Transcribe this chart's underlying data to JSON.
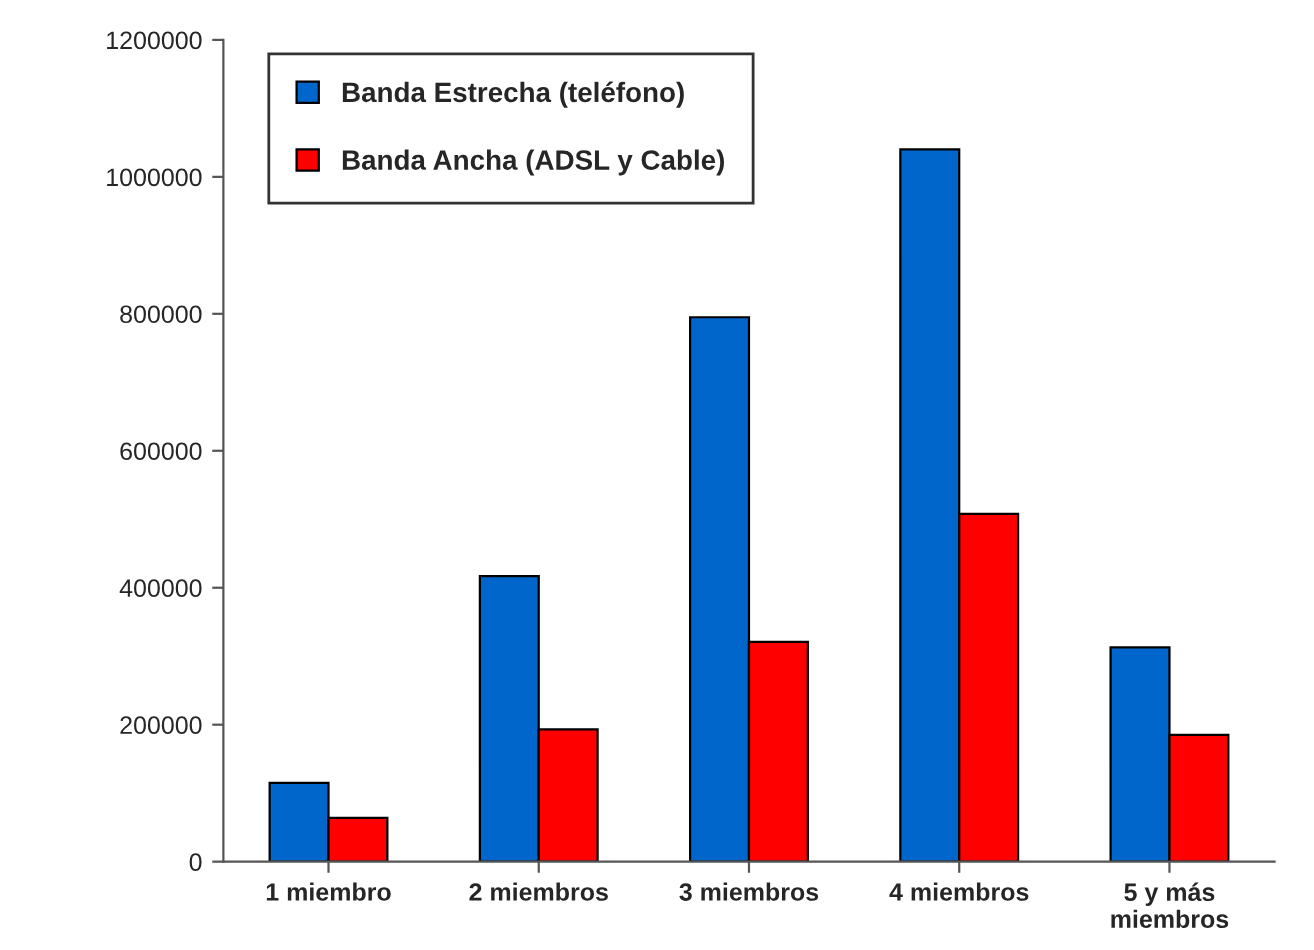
{
  "chart_data": {
    "type": "bar",
    "categories": [
      "1 miembro",
      "2 miembros",
      "3 miembros",
      "4 miembros",
      "5 y más\nmiembros"
    ],
    "series": [
      {
        "name": "Banda Estrecha (teléfono)",
        "color": "#0066cc",
        "values": [
          115000,
          417000,
          795000,
          1040000,
          313000
        ]
      },
      {
        "name": "Banda Ancha (ADSL y Cable)",
        "color": "#ff0000",
        "values": [
          64000,
          193000,
          321000,
          508000,
          185000
        ]
      }
    ],
    "ylim": [
      0,
      1200000
    ],
    "yticks": [
      0,
      200000,
      400000,
      600000,
      800000,
      1000000,
      1200000
    ],
    "grid": false,
    "legend": "top left"
  }
}
